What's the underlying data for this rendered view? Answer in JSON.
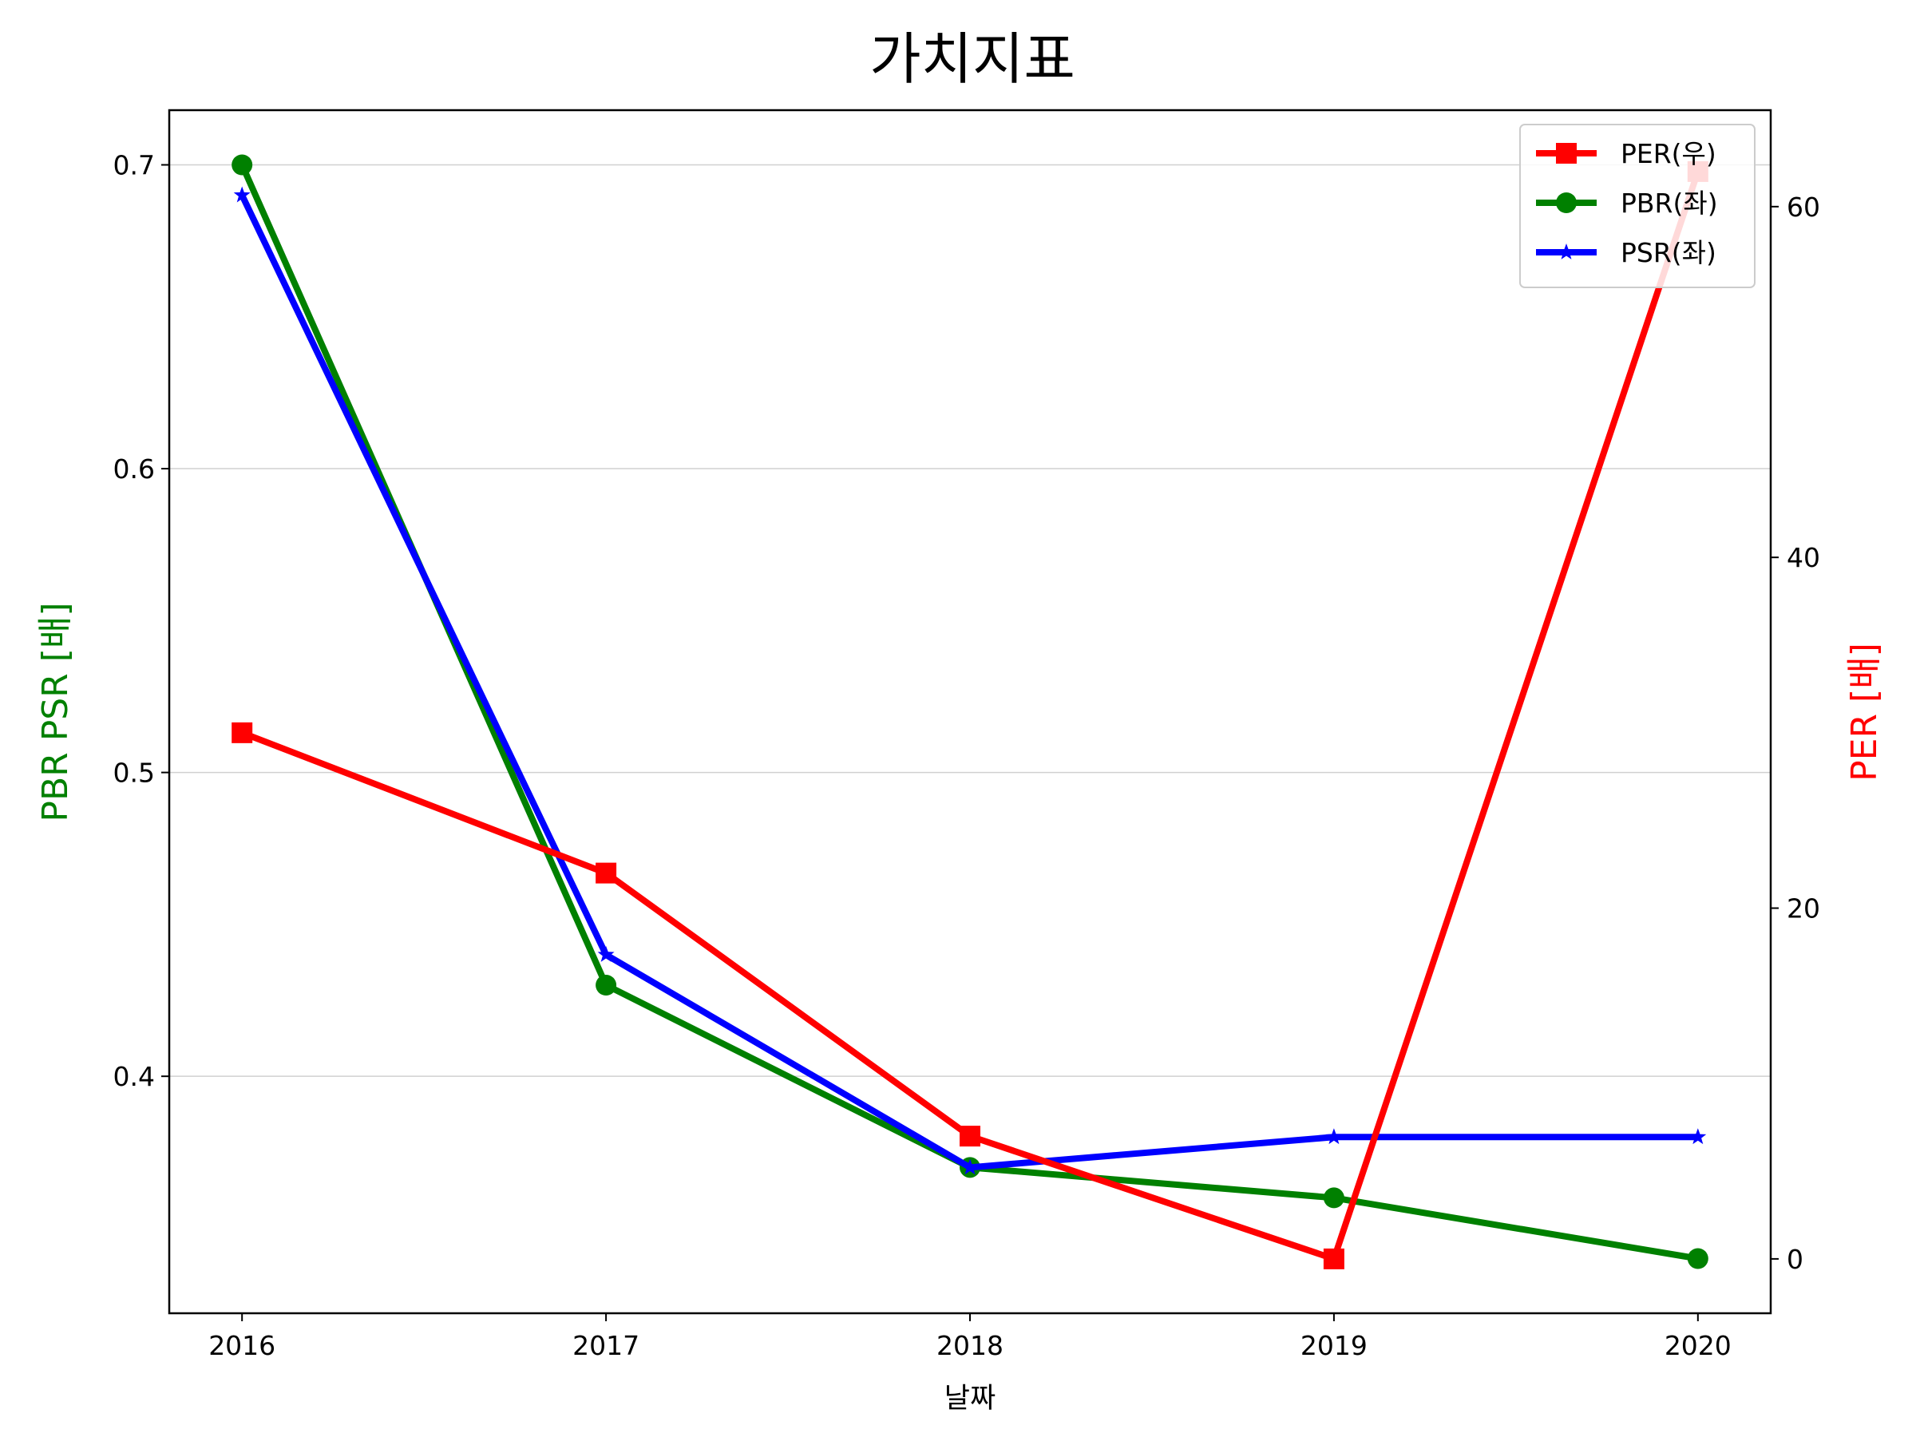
{
  "chart_data": {
    "type": "line",
    "title": "가치지표",
    "xlabel": "날짜",
    "ylabel_left": "PBR PSR [배]",
    "ylabel_right": "PER [배]",
    "ylabel_left_color": "#008000",
    "ylabel_right_color": "#ff0000",
    "x": [
      2016,
      2017,
      2018,
      2019,
      2020
    ],
    "xlim": [
      2015.8,
      2020.2
    ],
    "ylim_left": [
      0.322,
      0.718
    ],
    "ylim_right": [
      -3.1,
      65.5
    ],
    "yticks_left": [
      0.4,
      0.5,
      0.6,
      0.7
    ],
    "yticks_right": [
      0,
      20,
      40,
      60
    ],
    "grid": "horizontal",
    "legend_placement": "top-right",
    "series": [
      {
        "name": "PER(우)",
        "axis": "right",
        "color": "#ff0000",
        "marker": "square",
        "values": [
          30,
          22,
          7,
          0,
          62
        ]
      },
      {
        "name": "PBR(좌)",
        "axis": "left",
        "color": "#008000",
        "marker": "circle",
        "values": [
          0.7,
          0.43,
          0.37,
          0.36,
          0.34
        ]
      },
      {
        "name": "PSR(좌)",
        "axis": "left",
        "color": "#0000ff",
        "marker": "star",
        "values": [
          0.69,
          0.44,
          0.37,
          0.38,
          0.38
        ]
      }
    ]
  }
}
